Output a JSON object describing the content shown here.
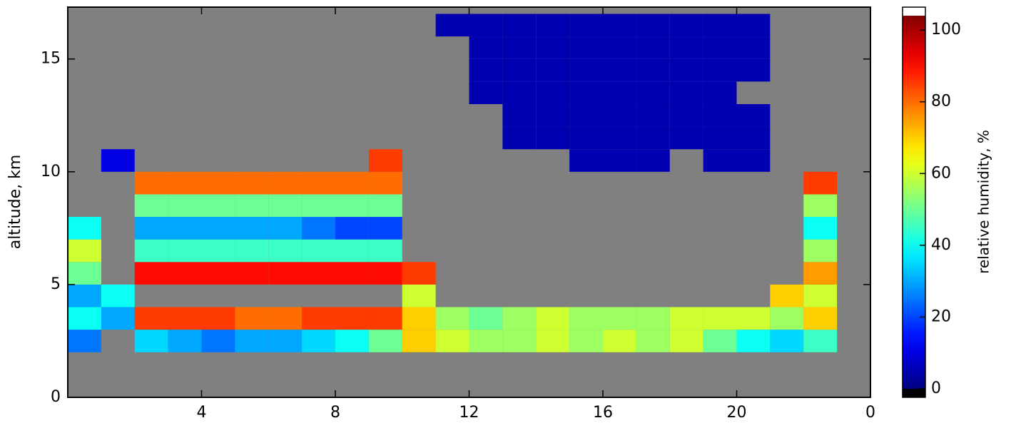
{
  "chart_data": {
    "type": "heatmap",
    "xlabel": null,
    "ylabel": "altitude, km",
    "colorbar_label": "relative humidity, %",
    "xlim": [
      0,
      24
    ],
    "xticks": [
      4,
      8,
      12,
      16,
      20,
      {
        "value": 24,
        "label": "0"
      }
    ],
    "ylim": [
      0,
      17.3
    ],
    "yticks": [
      0,
      5,
      10,
      15
    ],
    "clim": [
      0,
      104
    ],
    "cticks": [
      0,
      20,
      40,
      60,
      80,
      100
    ],
    "colormap": "jet",
    "background": "#808080",
    "xbins": [
      0,
      1,
      2,
      3,
      4,
      5,
      6,
      7,
      8,
      9,
      10,
      11,
      12,
      13,
      14,
      15,
      16,
      17,
      18,
      19,
      20,
      21,
      22,
      23,
      24
    ],
    "ybins": [
      0,
      1,
      2,
      3,
      4,
      5,
      6,
      7,
      8,
      9,
      10,
      11,
      12,
      13,
      14,
      15,
      16,
      17
    ],
    "z": [
      [
        null,
        null,
        null,
        null,
        null,
        null,
        null,
        null,
        null,
        null,
        null,
        null,
        null,
        null,
        null,
        null,
        null,
        null,
        null,
        null,
        null,
        null,
        null,
        null
      ],
      [
        null,
        null,
        null,
        null,
        null,
        null,
        null,
        null,
        null,
        null,
        null,
        null,
        null,
        null,
        null,
        null,
        null,
        null,
        null,
        null,
        null,
        null,
        null,
        null
      ],
      [
        25,
        null,
        35,
        30,
        25,
        30,
        30,
        35,
        40,
        50,
        70,
        60,
        55,
        55,
        60,
        55,
        60,
        55,
        60,
        50,
        40,
        35,
        45,
        null
      ],
      [
        40,
        30,
        85,
        85,
        85,
        80,
        80,
        85,
        85,
        85,
        70,
        55,
        50,
        55,
        60,
        55,
        55,
        55,
        60,
        60,
        60,
        55,
        70,
        null
      ],
      [
        30,
        40,
        null,
        null,
        null,
        null,
        null,
        null,
        null,
        null,
        60,
        null,
        null,
        null,
        null,
        null,
        null,
        null,
        null,
        null,
        null,
        70,
        60,
        null
      ],
      [
        50,
        null,
        90,
        90,
        90,
        90,
        90,
        90,
        90,
        90,
        85,
        null,
        null,
        null,
        null,
        null,
        null,
        null,
        null,
        null,
        null,
        null,
        75,
        null
      ],
      [
        60,
        null,
        45,
        45,
        45,
        45,
        45,
        45,
        45,
        45,
        null,
        null,
        null,
        null,
        null,
        null,
        null,
        null,
        null,
        null,
        null,
        null,
        55,
        null
      ],
      [
        40,
        null,
        30,
        30,
        30,
        30,
        30,
        25,
        20,
        20,
        null,
        null,
        null,
        null,
        null,
        null,
        null,
        null,
        null,
        null,
        null,
        null,
        40,
        null
      ],
      [
        null,
        null,
        50,
        50,
        50,
        50,
        50,
        50,
        50,
        50,
        null,
        null,
        null,
        null,
        null,
        null,
        null,
        null,
        null,
        null,
        null,
        null,
        55,
        null
      ],
      [
        null,
        null,
        80,
        80,
        80,
        80,
        80,
        80,
        80,
        80,
        null,
        null,
        null,
        null,
        null,
        null,
        null,
        null,
        null,
        null,
        null,
        null,
        85,
        null
      ],
      [
        null,
        10,
        null,
        null,
        null,
        null,
        null,
        null,
        null,
        85,
        null,
        null,
        null,
        null,
        null,
        5,
        5,
        5,
        null,
        5,
        5,
        null,
        null,
        null
      ],
      [
        null,
        null,
        null,
        null,
        null,
        null,
        null,
        null,
        null,
        null,
        null,
        null,
        null,
        5,
        5,
        5,
        5,
        5,
        5,
        5,
        5,
        null,
        null,
        null
      ],
      [
        null,
        null,
        null,
        null,
        null,
        null,
        null,
        null,
        null,
        null,
        null,
        null,
        null,
        5,
        5,
        5,
        5,
        5,
        5,
        5,
        5,
        null,
        null,
        null
      ],
      [
        null,
        null,
        null,
        null,
        null,
        null,
        null,
        null,
        null,
        null,
        null,
        null,
        5,
        5,
        5,
        5,
        5,
        5,
        5,
        5,
        null,
        null,
        null,
        null
      ],
      [
        null,
        null,
        null,
        null,
        null,
        null,
        null,
        null,
        null,
        null,
        null,
        null,
        5,
        5,
        5,
        5,
        5,
        5,
        5,
        5,
        5,
        null,
        null,
        null
      ],
      [
        null,
        null,
        null,
        null,
        null,
        null,
        null,
        null,
        null,
        null,
        null,
        null,
        5,
        5,
        5,
        5,
        5,
        5,
        5,
        5,
        5,
        null,
        null,
        null
      ],
      [
        null,
        null,
        null,
        null,
        null,
        null,
        null,
        null,
        null,
        null,
        null,
        5,
        5,
        5,
        5,
        5,
        5,
        5,
        5,
        5,
        5,
        null,
        null,
        null
      ]
    ]
  }
}
